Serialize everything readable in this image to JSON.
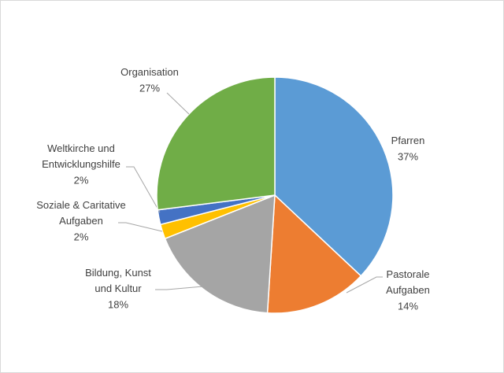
{
  "chart_data": {
    "type": "pie",
    "categories": [
      "Pfarren",
      "Pastorale Aufgaben",
      "Bildung, Kunst und Kultur",
      "Soziale & Caritative Aufgaben",
      "Weltkirche und Entwicklungshilfe",
      "Organisation"
    ],
    "values": [
      37,
      14,
      18,
      2,
      2,
      27
    ],
    "value_labels": [
      "37%",
      "14%",
      "18%",
      "2%",
      "2%",
      "27%"
    ],
    "colors": [
      "#5b9bd5",
      "#ed7d31",
      "#a5a5a5",
      "#ffc000",
      "#4472c4",
      "#70ad47"
    ]
  }
}
